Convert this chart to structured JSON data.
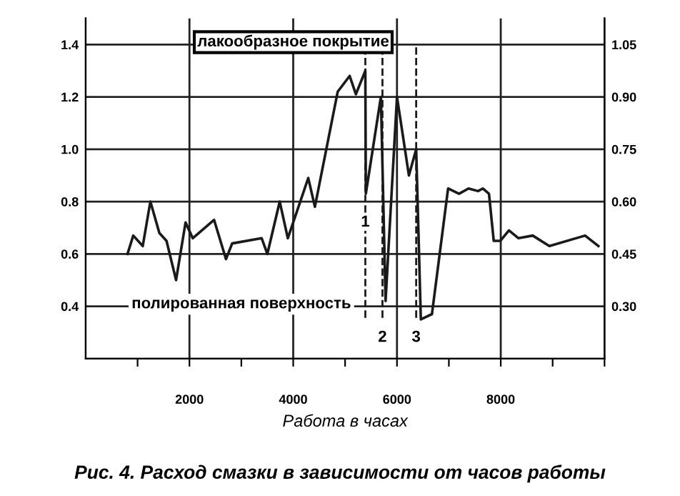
{
  "chart_data": {
    "type": "line",
    "xlabel": "Работа в часах",
    "x": [
      806,
      917,
      1100,
      1247,
      1420,
      1558,
      1742,
      1925,
      2063,
      2475,
      2704,
      2823,
      3392,
      3502,
      3740,
      3896,
      4290,
      4418,
      4858,
      5088,
      5208,
      5390,
      5400,
      5690,
      5780,
      6000,
      6230,
      6370,
      6460,
      6674,
      6985,
      7196,
      7379,
      7563,
      7654,
      7773,
      7865,
      7993,
      8158,
      8342,
      8617,
      8938,
      9625,
      9882
    ],
    "series": [
      {
        "color": "#1a1a1a",
        "values": [
          0.6,
          0.67,
          0.63,
          0.8,
          0.68,
          0.65,
          0.5,
          0.72,
          0.66,
          0.73,
          0.58,
          0.64,
          0.66,
          0.6,
          0.8,
          0.66,
          0.89,
          0.78,
          1.22,
          1.28,
          1.21,
          1.3,
          0.83,
          1.2,
          0.42,
          1.2,
          0.9,
          1.0,
          0.35,
          0.37,
          0.85,
          0.83,
          0.85,
          0.84,
          0.85,
          0.83,
          0.65,
          0.65,
          0.69,
          0.66,
          0.67,
          0.63,
          0.67,
          0.63
        ]
      }
    ],
    "xlim": [
      0,
      10000
    ],
    "xticks": [
      {
        "value": 1000,
        "label": null
      },
      2000,
      {
        "value": 3000,
        "label": null
      },
      4000,
      {
        "value": 5000,
        "label": null
      },
      6000,
      {
        "value": 7000,
        "label": null
      },
      8000,
      {
        "value": 9000,
        "label": null
      },
      {
        "value": 10000,
        "label": null
      }
    ],
    "ylim": [
      0.2,
      1.5
    ],
    "yticks": [
      0.4,
      0.6,
      0.8,
      {
        "value": 1.0,
        "label": "1.0"
      },
      1.2,
      1.4
    ],
    "y2lim": [
      0.15,
      1.125
    ],
    "y2ticks": [
      {
        "value": 0.3,
        "label": "0.30"
      },
      {
        "value": 0.45,
        "label": "0.45"
      },
      {
        "value": 0.6,
        "label": "0.60"
      },
      {
        "value": 0.75,
        "label": "0.75"
      },
      {
        "value": 0.9,
        "label": "0.90"
      },
      {
        "value": 1.05,
        "label": "1.05"
      }
    ],
    "ref_lines": [
      {
        "axis": "x",
        "value": 5390,
        "line_style": "dashed"
      },
      {
        "axis": "x",
        "value": 5720,
        "line_style": "dashed"
      },
      {
        "axis": "x",
        "value": 6370,
        "line_style": "dashed"
      }
    ],
    "annotations": [
      "лакообразное покрытие",
      "полированная поверхность",
      "Рис. 4. Расход смазки в зависимости от часов работы",
      {
        "text": "1",
        "x": 5390,
        "y": 0.72
      },
      {
        "text": "2",
        "x": 5720,
        "y": 0.28
      },
      {
        "text": "3",
        "x": 6370,
        "y": 0.28
      }
    ],
    "grid": true,
    "marker": "none",
    "line_style": "solid"
  }
}
